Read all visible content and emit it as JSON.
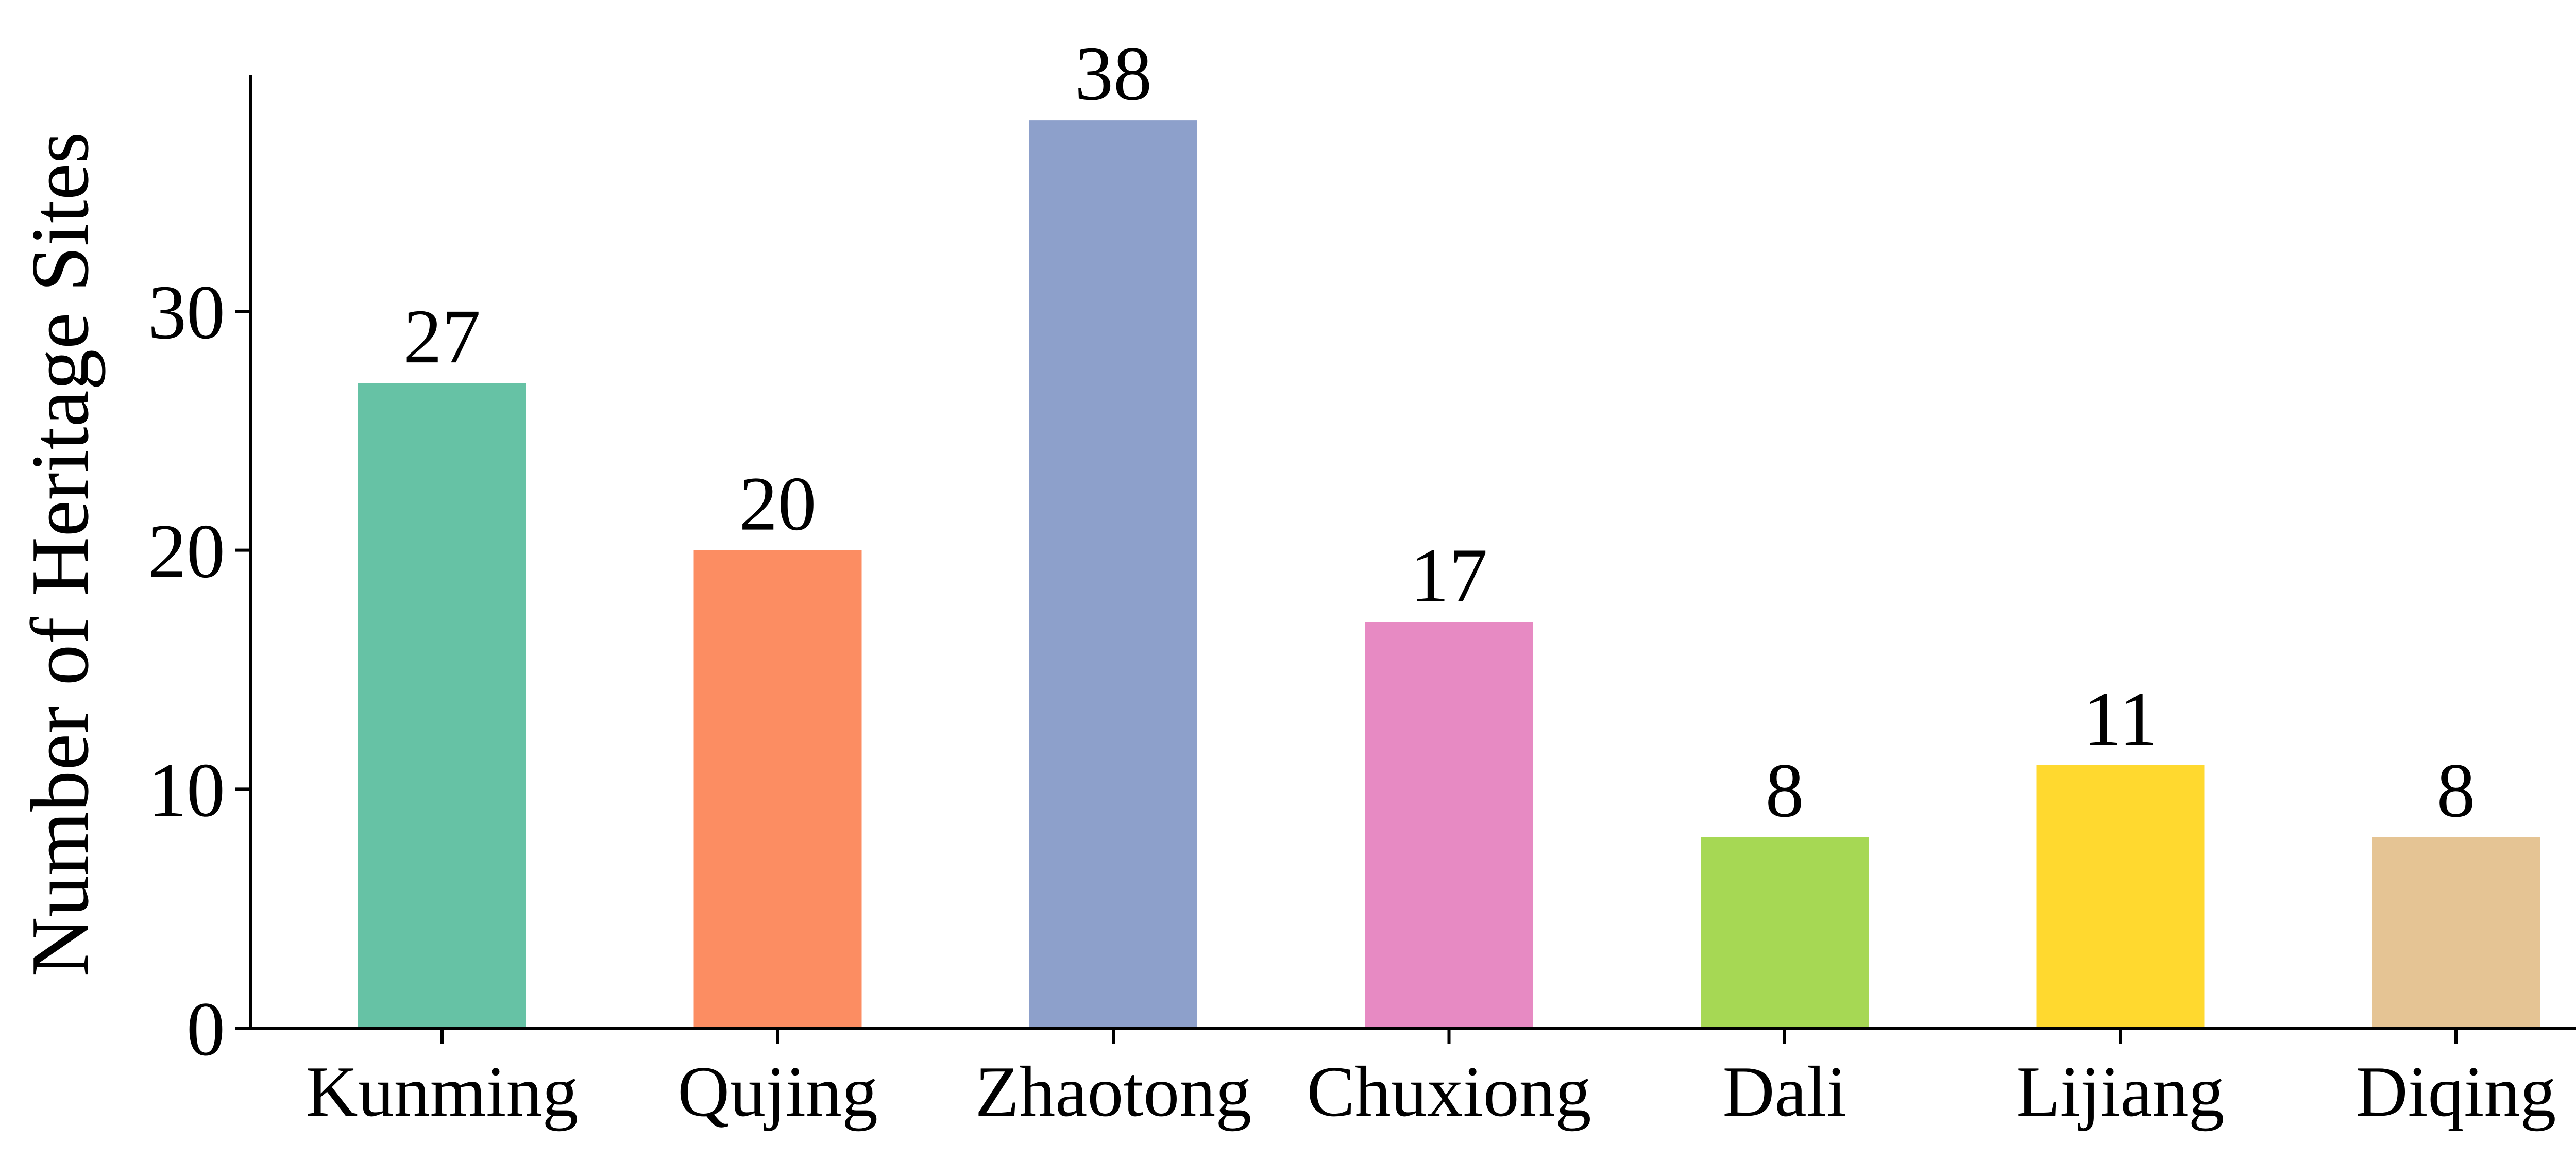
{
  "chart_data": {
    "type": "bar",
    "title": "",
    "xlabel": "",
    "ylabel": "Number of Heritage Sites",
    "categories": [
      "Kunming",
      "Qujing",
      "Zhaotong",
      "Chuxiong",
      "Dali",
      "Lijiang",
      "Diqing"
    ],
    "values": [
      27,
      20,
      38,
      17,
      8,
      11,
      8
    ],
    "colors": [
      "#66c2a5",
      "#fc8d62",
      "#8da0cb",
      "#e78ac3",
      "#a6d854",
      "#ffd92f",
      "#e5c494"
    ],
    "data_labels": [
      "27",
      "20",
      "38",
      "17",
      "8",
      "11",
      "8"
    ],
    "yticks": [
      0,
      10,
      20,
      30
    ],
    "ytick_labels": [
      "0",
      "10",
      "20",
      "30"
    ],
    "ylim": [
      0,
      39.9
    ],
    "grid": false,
    "legend": "none",
    "spines": [
      "left",
      "bottom"
    ]
  }
}
